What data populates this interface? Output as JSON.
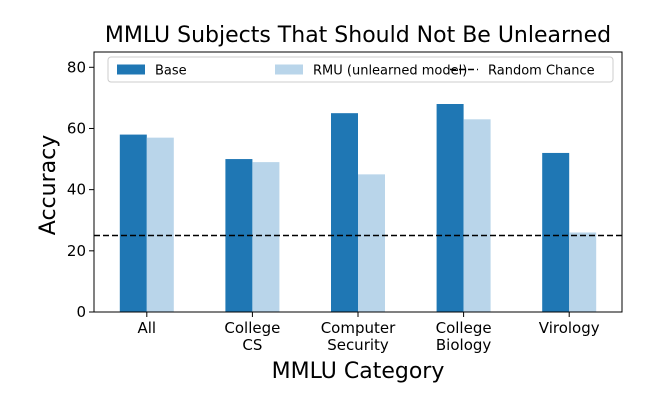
{
  "chart_data": {
    "type": "bar",
    "title": "MMLU Subjects That Should Not Be Unlearned",
    "xlabel": "MMLU Category",
    "ylabel": "Accuracy",
    "categories": [
      [
        "All"
      ],
      [
        "College",
        "CS"
      ],
      [
        "Computer",
        "Security"
      ],
      [
        "College",
        "Biology"
      ],
      [
        "Virology"
      ]
    ],
    "series": [
      {
        "name": "Base",
        "color": "#1f77b4",
        "values": [
          58,
          50,
          65,
          68,
          52
        ]
      },
      {
        "name": "RMU (unlearned model)",
        "color": "#b9d5ea",
        "values": [
          57,
          49,
          45,
          63,
          26
        ]
      }
    ],
    "reference_line": {
      "name": "Random Chance",
      "value": 25,
      "style": "dashed",
      "color": "#000000"
    },
    "ylim": [
      0,
      85
    ],
    "yticks": [
      "0",
      "20",
      "40",
      "60",
      "80"
    ],
    "grid": false,
    "legend_position": "top"
  }
}
